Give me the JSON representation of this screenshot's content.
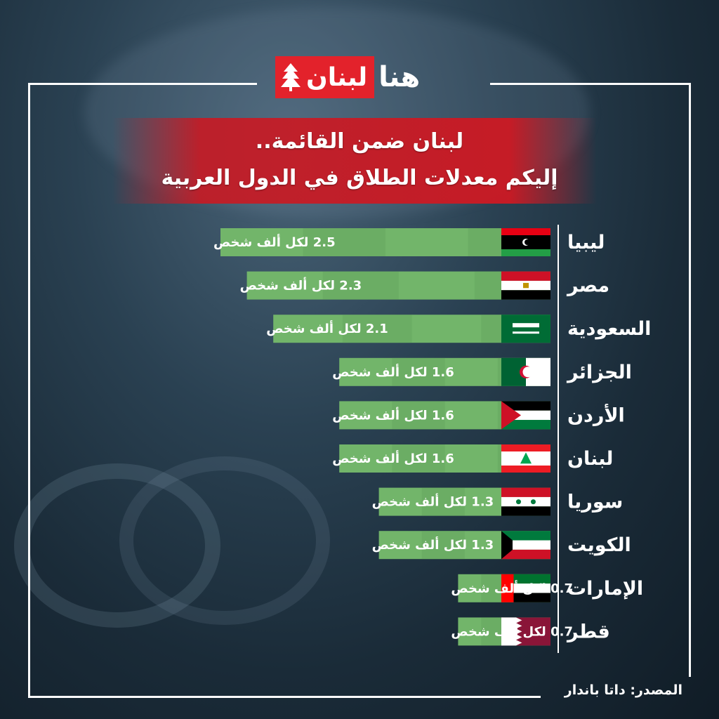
{
  "logo": {
    "badge_text": "لبنان",
    "tail_text": "هنا"
  },
  "title": {
    "line1": "لبنان ضمن القائمة..",
    "line2": "إليكم معدلات الطلاق في الدول العربية"
  },
  "source": "المصدر: داتا باندار",
  "colors": {
    "bar": "#72b56a",
    "bar_dark": "#5e9f58",
    "accent_red": "#e3222b"
  },
  "chart_data": {
    "type": "bar",
    "orientation": "horizontal",
    "unit_label": "لكل ألف شخص",
    "categories": [
      "ليبيا",
      "مصر",
      "السعودية",
      "الجزائر",
      "الأردن",
      "لبنان",
      "سوريا",
      "الكويت",
      "الإمارات",
      "قطر"
    ],
    "values": [
      2.5,
      2.3,
      2.1,
      1.6,
      1.6,
      1.6,
      1.3,
      1.3,
      0.7,
      0.7
    ],
    "data_labels": [
      "2.5 لكل ألف شخص",
      "2.3 لكل ألف شخص",
      "2.1 لكل ألف شخص",
      "1.6 لكل ألف شخص",
      "1.6 لكل ألف شخص",
      "1.6 لكل ألف شخص",
      "1.3 لكل ألف شخص",
      "1.3 لكل ألف شخص",
      "0.7 لكل ألف شخص",
      "0.7 لكل ألف شخص"
    ],
    "flags": [
      "libya-flag-icon",
      "egypt-flag-icon",
      "saudi-flag-icon",
      "algeria-flag-icon",
      "jordan-flag-icon",
      "lebanon-flag-icon",
      "syria-flag-icon",
      "kuwait-flag-icon",
      "uae-flag-icon",
      "qatar-flag-icon"
    ],
    "xlim": [
      0,
      2.5
    ],
    "grid": false,
    "legend": "none"
  }
}
